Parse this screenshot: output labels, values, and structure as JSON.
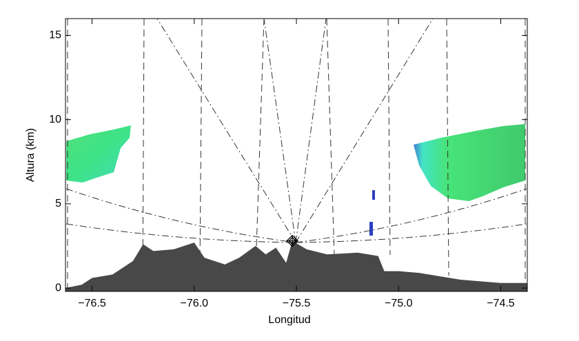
{
  "chart_data": {
    "type": "area",
    "x_label": "Longitud",
    "y_label": "Altura (km)",
    "x": [
      -76.63,
      -76.55,
      -76.5,
      -76.4,
      -76.3,
      -76.25,
      -76.2,
      -76.1,
      -76.0,
      -75.95,
      -75.85,
      -75.78,
      -75.7,
      -75.65,
      -75.6,
      -75.55,
      -75.52,
      -75.45,
      -75.35,
      -75.2,
      -75.1,
      -75.07,
      -75.0,
      -74.9,
      -74.8,
      -74.7,
      -74.6,
      -74.5,
      -74.37
    ],
    "values": [
      0,
      0.2,
      0.6,
      0.8,
      1.6,
      2.6,
      2.2,
      2.3,
      2.7,
      1.8,
      1.4,
      1.8,
      2.5,
      2.0,
      2.4,
      1.5,
      2.8,
      2.3,
      2.0,
      2.1,
      1.9,
      1.0,
      1.0,
      0.9,
      0.7,
      0.5,
      0.4,
      0.3,
      0.3
    ],
    "color": "#484848",
    "radar": {
      "x": -75.52,
      "y": 2.8
    },
    "xlim": [
      -76.63,
      -74.37
    ],
    "ylim": [
      -0.2,
      16
    ],
    "xticks": [
      {
        "value": -76.5,
        "label": "−76.5"
      },
      {
        "value": -76.0,
        "label": "−76.0"
      },
      {
        "value": -75.5,
        "label": "−75.5"
      },
      {
        "value": -75.0,
        "label": "−75.0"
      },
      {
        "value": -74.5,
        "label": "−74.5"
      }
    ],
    "yticks": [
      0,
      5,
      10,
      15
    ]
  }
}
